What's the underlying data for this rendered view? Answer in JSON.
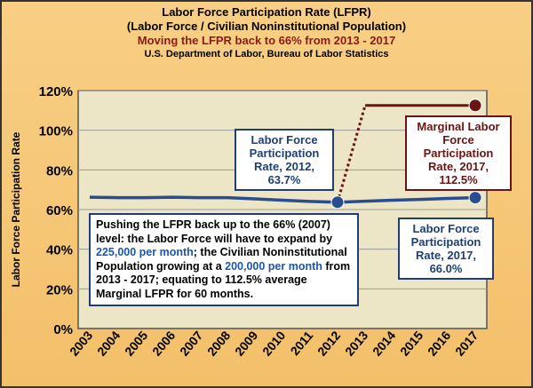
{
  "header": {
    "title_line1": "Labor Force Participation Rate (LFPR)",
    "title_line2": "(Labor Force / Civilian Noninstitutional Population)",
    "title_line3": "Moving the LFPR back to 66% from 2013 - 2017",
    "source": "U.S. Department of Labor, Bureau of Labor Statistics"
  },
  "annotations": {
    "box_2012": "Labor Force Participation Rate, 2012, 63.7%",
    "box_marginal": "Marginal Labor Force Participation Rate, 2017, 112.5%",
    "box_2017": "Labor Force Participation Rate, 2017, 66.0%",
    "note_part1": "Pushing the LFPR back up to the 66% (2007) level: the Labor Force will have to expand by ",
    "note_hl1": "225,000 per month",
    "note_part2": "; the Civilian Noninstitutional Population growing at a ",
    "note_hl2": "200,000 per month",
    "note_part3": " from 2013 - 2017; equating to 112.5% average Marginal LFPR for 60 months."
  },
  "colors": {
    "plot_bg": "#ece6c6",
    "lfpr_line": "#2a4d8f",
    "marginal_line": "#6b1414",
    "highlight_text": "#1a56b0"
  },
  "chart_data": {
    "type": "line",
    "title": "Labor Force Participation Rate (LFPR)",
    "xlabel": "",
    "ylabel": "Labor Force Participation Rate",
    "categories": [
      "2003",
      "2004",
      "2005",
      "2006",
      "2007",
      "2008",
      "2009",
      "2010",
      "2011",
      "2012",
      "2013",
      "2014",
      "2015",
      "2016",
      "2017"
    ],
    "ylim": [
      0,
      120
    ],
    "yticks": [
      0,
      20,
      40,
      60,
      80,
      100,
      120
    ],
    "ytick_labels": [
      "0%",
      "20%",
      "40%",
      "60%",
      "80%",
      "100%",
      "120%"
    ],
    "grid": true,
    "series": [
      {
        "values": [
          66.2,
          66.0,
          66.0,
          66.2,
          66.0,
          66.0,
          65.4,
          64.7,
          64.1,
          63.7,
          64.2,
          64.7,
          65.1,
          65.6,
          66.0
        ],
        "markers": [
          "2012",
          "2017"
        ]
      },
      {
        "values": [
          null,
          null,
          null,
          null,
          null,
          null,
          null,
          null,
          null,
          63.7,
          112.5,
          112.5,
          112.5,
          112.5,
          112.5
        ],
        "markers": [
          "2017"
        ]
      }
    ]
  }
}
